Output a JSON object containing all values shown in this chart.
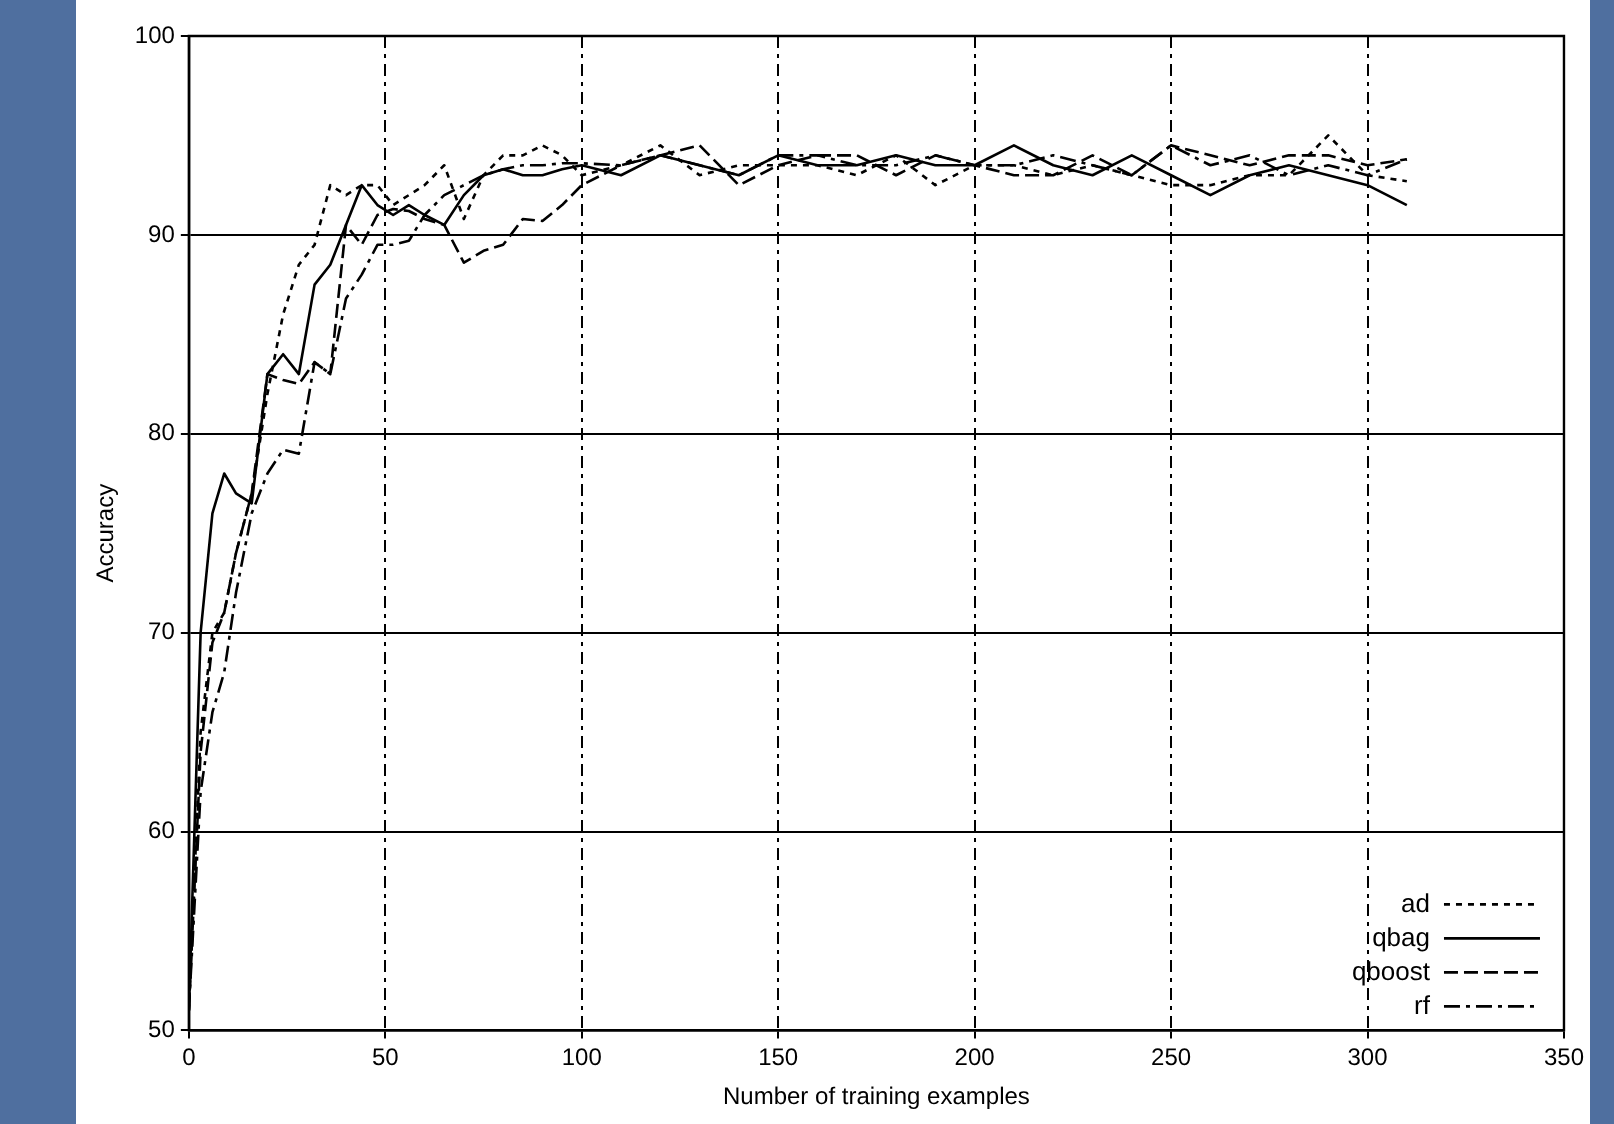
{
  "chart_data": {
    "type": "line",
    "xlabel": "Number of training examples",
    "ylabel": "Accuracy",
    "x": [
      0,
      3,
      6,
      9,
      12,
      16,
      20,
      24,
      28,
      32,
      36,
      40,
      44,
      48,
      52,
      56,
      60,
      65,
      70,
      75,
      80,
      85,
      90,
      95,
      100,
      110,
      120,
      130,
      140,
      150,
      160,
      170,
      180,
      190,
      200,
      210,
      220,
      230,
      240,
      250,
      260,
      270,
      280,
      290,
      300,
      310
    ],
    "series": [
      {
        "name": "ad",
        "color": "#000000",
        "line_style": "dotted",
        "values": [
          51,
          65,
          70,
          71,
          74,
          77,
          82,
          86,
          88.5,
          89.5,
          92.5,
          92,
          92.5,
          92.5,
          91.5,
          92,
          92.5,
          93.5,
          90.8,
          93,
          94,
          94,
          94.5,
          94,
          93,
          93.5,
          94.5,
          93,
          93.5,
          93.5,
          93.5,
          93,
          94,
          92.5,
          93.5,
          93.5,
          93,
          93.5,
          93,
          92.5,
          92.5,
          93,
          93,
          95,
          93,
          92.7
        ]
      },
      {
        "name": "qbag",
        "color": "#000000",
        "line_style": "solid",
        "values": [
          51,
          70,
          76,
          78,
          77,
          76.5,
          83,
          84,
          83,
          87.5,
          88.5,
          90.5,
          92.5,
          91.5,
          91,
          91.5,
          91,
          90.5,
          92,
          93,
          93.3,
          93,
          93,
          93.3,
          93.5,
          93,
          94,
          93.5,
          93,
          94,
          93.5,
          93.5,
          94,
          93.5,
          93.5,
          94.5,
          93.5,
          93,
          94,
          93,
          92,
          93,
          93.5,
          93,
          92.5,
          91.5
        ]
      },
      {
        "name": "qboost",
        "color": "#000000",
        "line_style": "dashed",
        "values": [
          51,
          64,
          69.5,
          71,
          74,
          77,
          83,
          82.7,
          82.5,
          83.6,
          83,
          90.5,
          89.5,
          91,
          91.3,
          91.2,
          90.8,
          90.5,
          88.6,
          89.2,
          89.5,
          90.8,
          90.7,
          91.5,
          92.5,
          93.5,
          94,
          94.5,
          92.5,
          93.5,
          94,
          94,
          93,
          94,
          93.5,
          93,
          93,
          94,
          93,
          94.5,
          94,
          93.5,
          94,
          94,
          93.5,
          93.8
        ]
      },
      {
        "name": "rf",
        "color": "#000000",
        "line_style": "dashdot",
        "values": [
          51,
          62,
          66,
          68,
          72,
          76,
          78,
          79.2,
          79,
          83.6,
          83,
          86.8,
          88,
          89.5,
          89.5,
          89.7,
          91,
          92,
          92.5,
          93,
          93.3,
          93.5,
          93.5,
          93.6,
          93.6,
          93.5,
          94,
          93.5,
          93,
          94,
          94,
          93.5,
          93.5,
          94,
          93.5,
          93.5,
          94,
          93.5,
          93,
          94.5,
          93.5,
          94,
          93,
          93.5,
          93,
          93.8
        ]
      }
    ],
    "xlim": [
      0,
      350
    ],
    "xticks": [
      0,
      50,
      100,
      150,
      200,
      250,
      300,
      350
    ],
    "ylim": [
      50,
      100
    ],
    "yticks": [
      50,
      60,
      70,
      80,
      90,
      100
    ],
    "grid": true,
    "legend": "bottom right",
    "marker": "none"
  }
}
